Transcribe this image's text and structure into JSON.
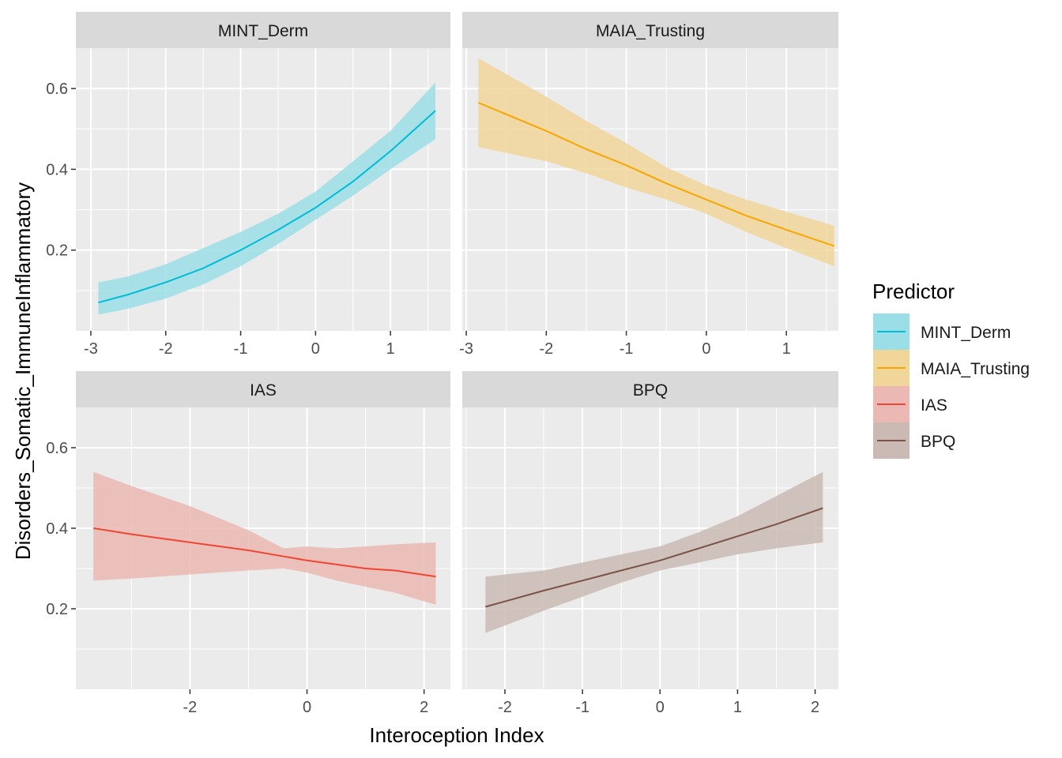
{
  "chart_data": {
    "type": "line",
    "xlabel": "Interoception Index",
    "ylabel": "Disorders_Somatic_ImmuneInflammatory",
    "legend": {
      "title": "Predictor",
      "position": "right"
    },
    "grid": true,
    "ylim": [
      0.0,
      0.7
    ],
    "y_ticks": [
      0.2,
      0.4,
      0.6
    ],
    "y_tick_labels": [
      "0.2",
      "0.4",
      "0.6"
    ],
    "panels": [
      {
        "name": "MINT_Derm",
        "color": "#00BCD8",
        "band_color": "#9CDEE8",
        "xlim": [
          -3.2,
          1.8
        ],
        "x_ticks": [
          -3,
          -2,
          -1,
          0,
          1
        ],
        "x_tick_labels": [
          "-3",
          "-2",
          "-1",
          "0",
          "1"
        ],
        "x": [
          -2.9,
          -2.5,
          -2.0,
          -1.5,
          -1.0,
          -0.5,
          0.0,
          0.5,
          1.0,
          1.6
        ],
        "y": [
          0.07,
          0.09,
          0.12,
          0.155,
          0.2,
          0.25,
          0.305,
          0.37,
          0.445,
          0.545
        ],
        "lower": [
          0.04,
          0.055,
          0.08,
          0.115,
          0.16,
          0.215,
          0.275,
          0.335,
          0.4,
          0.475
        ],
        "upper": [
          0.12,
          0.135,
          0.165,
          0.205,
          0.245,
          0.29,
          0.345,
          0.42,
          0.495,
          0.615
        ]
      },
      {
        "name": "MAIA_Trusting",
        "color": "#F9A602",
        "band_color": "#F1D69A",
        "xlim": [
          -3.05,
          1.65
        ],
        "x_ticks": [
          -3,
          -2,
          -1,
          0,
          1
        ],
        "x_tick_labels": [
          "-3",
          "-2",
          "-1",
          "0",
          "1"
        ],
        "x": [
          -2.85,
          -2.0,
          -1.5,
          -1.0,
          -0.5,
          0.0,
          0.5,
          1.0,
          1.6
        ],
        "y": [
          0.565,
          0.495,
          0.45,
          0.41,
          0.365,
          0.325,
          0.285,
          0.25,
          0.21
        ],
        "lower": [
          0.455,
          0.42,
          0.39,
          0.355,
          0.325,
          0.29,
          0.245,
          0.205,
          0.16
        ],
        "upper": [
          0.675,
          0.58,
          0.52,
          0.465,
          0.405,
          0.36,
          0.325,
          0.295,
          0.26
        ]
      },
      {
        "name": "IAS",
        "color": "#F04530",
        "band_color": "#EBB8B3",
        "xlim": [
          -3.95,
          2.45
        ],
        "x_ticks": [
          -2,
          0,
          2
        ],
        "x_tick_labels": [
          "-2",
          "0",
          "2"
        ],
        "x": [
          -3.65,
          -3.0,
          -2.0,
          -1.0,
          -0.4,
          0.0,
          0.5,
          1.0,
          1.5,
          2.2
        ],
        "y": [
          0.4,
          0.385,
          0.365,
          0.345,
          0.33,
          0.32,
          0.31,
          0.3,
          0.295,
          0.28
        ],
        "lower": [
          0.27,
          0.275,
          0.285,
          0.295,
          0.3,
          0.29,
          0.27,
          0.255,
          0.24,
          0.21
        ],
        "upper": [
          0.54,
          0.505,
          0.455,
          0.395,
          0.35,
          0.355,
          0.35,
          0.355,
          0.36,
          0.365
        ]
      },
      {
        "name": "BPQ",
        "color": "#7A5446",
        "band_color": "#CABAB3",
        "xlim": [
          -2.55,
          2.3
        ],
        "x_ticks": [
          -2,
          -1,
          0,
          1,
          2
        ],
        "x_tick_labels": [
          "-2",
          "-1",
          "0",
          "1",
          "2"
        ],
        "x": [
          -2.25,
          -1.5,
          -1.0,
          -0.5,
          0.0,
          0.5,
          1.0,
          1.5,
          2.1
        ],
        "y": [
          0.205,
          0.245,
          0.27,
          0.295,
          0.32,
          0.35,
          0.38,
          0.41,
          0.45
        ],
        "lower": [
          0.14,
          0.195,
          0.23,
          0.265,
          0.295,
          0.315,
          0.335,
          0.35,
          0.365
        ],
        "upper": [
          0.28,
          0.295,
          0.315,
          0.335,
          0.355,
          0.39,
          0.43,
          0.48,
          0.54
        ]
      }
    ]
  }
}
